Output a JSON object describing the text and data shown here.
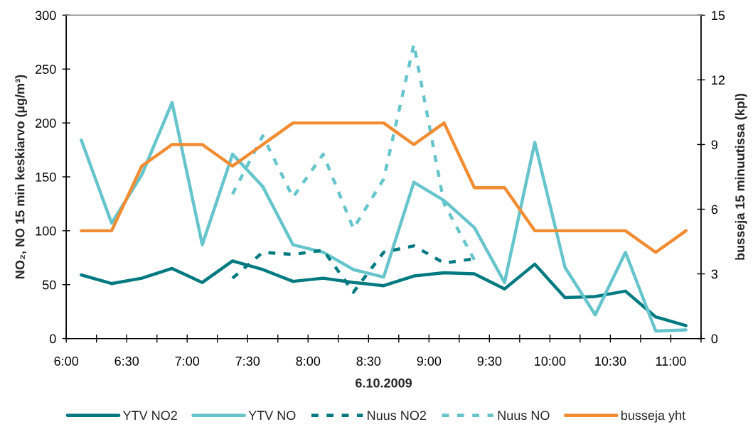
{
  "chart_data": {
    "type": "line",
    "xlabel": "6.10.2009",
    "ylabel": "NO₂, NO 15 min keskiarvo (µg/m³)",
    "y2label": "busseja 15 minuutissa (kpl)",
    "x": [
      6.125,
      6.375,
      6.625,
      6.875,
      7.125,
      7.375,
      7.625,
      7.875,
      8.125,
      8.375,
      8.625,
      8.875,
      9.125,
      9.375,
      9.625,
      9.875,
      10.125,
      10.375,
      10.625,
      10.875,
      11.125
    ],
    "xlim": [
      6,
      11.25
    ],
    "xticks": [
      {
        "value": 6,
        "label": "6:00"
      },
      {
        "value": 6.25,
        "label": null
      },
      {
        "value": 6.5,
        "label": "6:30"
      },
      {
        "value": 6.75,
        "label": null
      },
      {
        "value": 7,
        "label": "7:00"
      },
      {
        "value": 7.25,
        "label": null
      },
      {
        "value": 7.5,
        "label": "7:30"
      },
      {
        "value": 7.75,
        "label": null
      },
      {
        "value": 8,
        "label": "8:00"
      },
      {
        "value": 8.25,
        "label": null
      },
      {
        "value": 8.5,
        "label": "8:30"
      },
      {
        "value": 8.75,
        "label": null
      },
      {
        "value": 9,
        "label": "9:00"
      },
      {
        "value": 9.25,
        "label": null
      },
      {
        "value": 9.5,
        "label": "9:30"
      },
      {
        "value": 9.75,
        "label": null
      },
      {
        "value": 10,
        "label": "10:00"
      },
      {
        "value": 10.25,
        "label": null
      },
      {
        "value": 10.5,
        "label": "10:30"
      },
      {
        "value": 10.75,
        "label": null
      },
      {
        "value": 11,
        "label": "11:00"
      },
      {
        "value": 11.25,
        "label": null
      }
    ],
    "ylim": [
      0,
      300
    ],
    "yticks": [
      0,
      50,
      100,
      150,
      200,
      250,
      300
    ],
    "y2lim": [
      0,
      15
    ],
    "y2ticks": [
      0,
      3,
      6,
      9,
      12,
      15
    ],
    "grid": false,
    "legend": "bottom",
    "marker": "none",
    "series": [
      {
        "name": "YTV NO2",
        "color": "#007a80",
        "line_style": "solid",
        "values": [
          59,
          51,
          56,
          65,
          52,
          72,
          64,
          53,
          56,
          52,
          49,
          58,
          61,
          60,
          46,
          69,
          38,
          39,
          44,
          20,
          12
        ]
      },
      {
        "name": "YTV NO",
        "color": "#66c4cc",
        "line_style": "solid",
        "values": [
          184,
          107,
          152,
          219,
          87,
          171,
          141,
          87,
          80,
          64,
          57,
          145,
          128,
          103,
          52,
          182,
          66,
          22,
          80,
          7,
          8
        ]
      },
      {
        "name": "Nuus NO2",
        "color": "#007a80",
        "line_style": "dashed",
        "values": [
          null,
          null,
          null,
          null,
          null,
          56,
          80,
          78,
          82,
          43,
          80,
          86,
          70,
          74,
          null,
          null,
          null,
          null,
          null,
          null,
          null
        ]
      },
      {
        "name": "Nuus NO",
        "color": "#66c4cc",
        "line_style": "dashed",
        "values": [
          null,
          null,
          null,
          null,
          null,
          134,
          188,
          131,
          171,
          102,
          148,
          273,
          125,
          73,
          null,
          null,
          null,
          null,
          null,
          null,
          null
        ]
      },
      {
        "name": "busseja yht",
        "color": "#f28c33",
        "line_style": "solid",
        "axis": "y2",
        "values": [
          5,
          5,
          8,
          9,
          9,
          8,
          9,
          10,
          10,
          10,
          10,
          9,
          10,
          7,
          7,
          5,
          5,
          5,
          5,
          4,
          5
        ]
      }
    ]
  }
}
